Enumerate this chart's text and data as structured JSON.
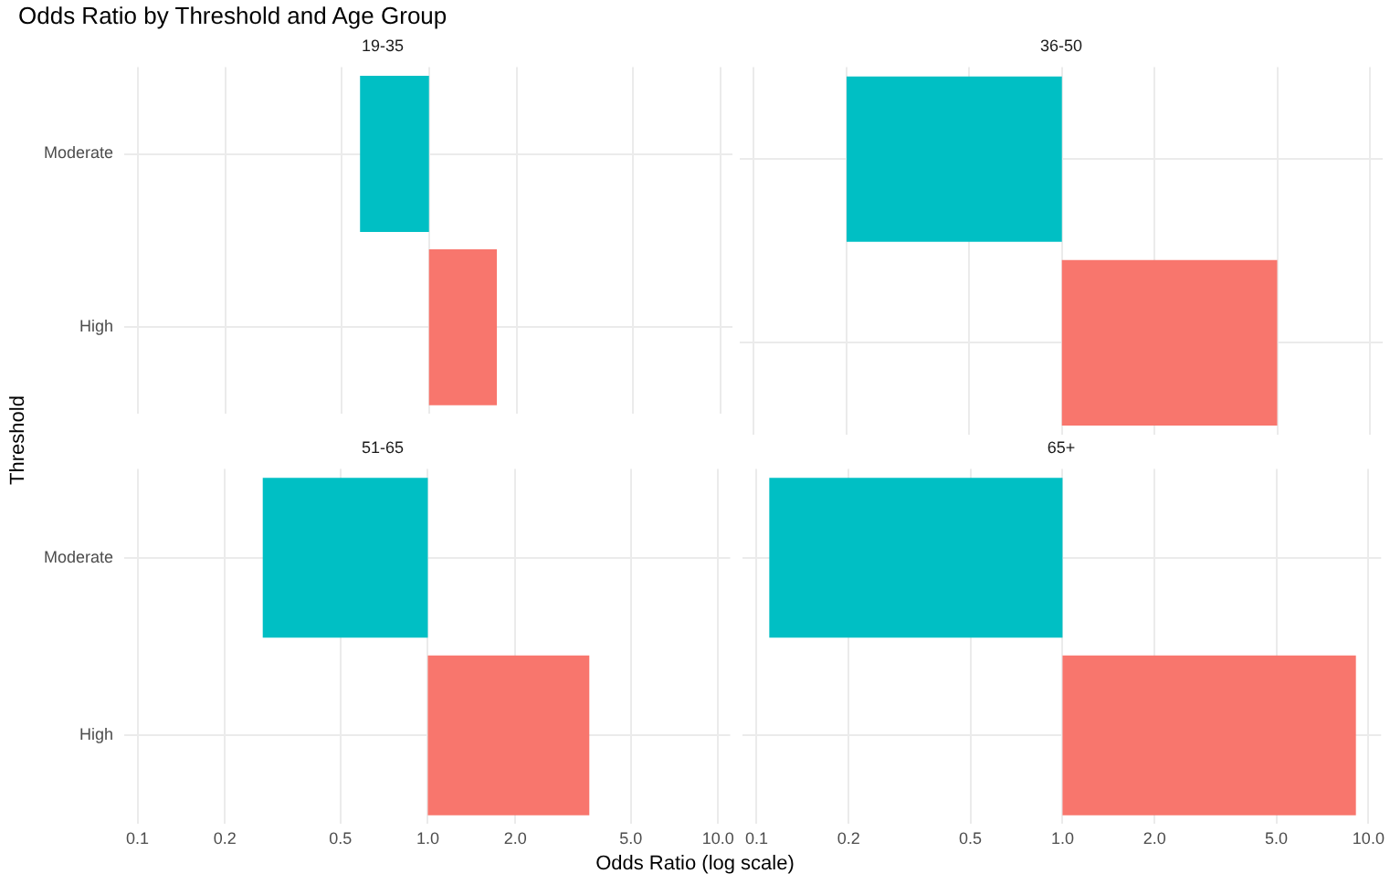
{
  "chart_data": [
    {
      "type": "bar",
      "orientation": "horizontal",
      "title": "Odds Ratio by Threshold and Age Group",
      "subtitle": "19-35",
      "xlabel": "Odds Ratio (log scale)",
      "ylabel": "Threshold",
      "categories": [
        "Moderate",
        "High"
      ],
      "base": [
        1,
        1
      ],
      "values": [
        -0.42,
        0.71
      ],
      "colors": [
        "#00bfc4",
        "#f8766d"
      ],
      "log": "x",
      "xlim": [
        0.09,
        11
      ],
      "xticks": [
        0.1,
        0.2,
        0.5,
        1,
        2,
        5,
        10
      ],
      "grid": true,
      "tick_labels": "y"
    },
    {
      "type": "bar",
      "orientation": "horizontal",
      "subtitle": "36-50",
      "categories": [
        null,
        null
      ],
      "base": [
        1,
        1
      ],
      "values": [
        -0.8,
        4.0
      ],
      "colors": [
        "#00bfc4",
        "#f8766d"
      ],
      "log": "x",
      "xlim": [
        0.09,
        11
      ],
      "xticks": [
        0.1,
        0.2,
        0.5,
        1,
        2,
        5,
        10
      ],
      "grid": true,
      "tick_labels": false
    },
    {
      "type": "bar",
      "orientation": "horizontal",
      "subtitle": "51-65",
      "categories": [
        "Moderate",
        "High"
      ],
      "base": [
        1,
        1
      ],
      "values": [
        -0.73,
        2.6
      ],
      "colors": [
        "#00bfc4",
        "#f8766d"
      ],
      "log": "x",
      "xlim": [
        0.09,
        11
      ],
      "xticks": [
        0.1,
        0.2,
        0.5,
        {
          "value": 1,
          "label": "1.0"
        },
        {
          "value": 2,
          "label": "2.0"
        },
        {
          "value": 5,
          "label": "5.0"
        },
        {
          "value": 10,
          "label": "10.0"
        }
      ],
      "grid": true
    },
    {
      "type": "bar",
      "orientation": "horizontal",
      "subtitle": "65+",
      "categories": [
        null,
        null
      ],
      "base": [
        1,
        1
      ],
      "values": [
        -0.89,
        8.1
      ],
      "colors": [
        "#00bfc4",
        "#f8766d"
      ],
      "log": "x",
      "xlim": [
        0.09,
        11
      ],
      "xticks": [
        0.1,
        0.2,
        0.5,
        {
          "value": 1,
          "label": "1.0"
        },
        {
          "value": 2,
          "label": "2.0"
        },
        {
          "value": 5,
          "label": "5.0"
        },
        {
          "value": 10,
          "label": "10.0"
        }
      ],
      "grid": true,
      "tick_labels": "x"
    }
  ]
}
